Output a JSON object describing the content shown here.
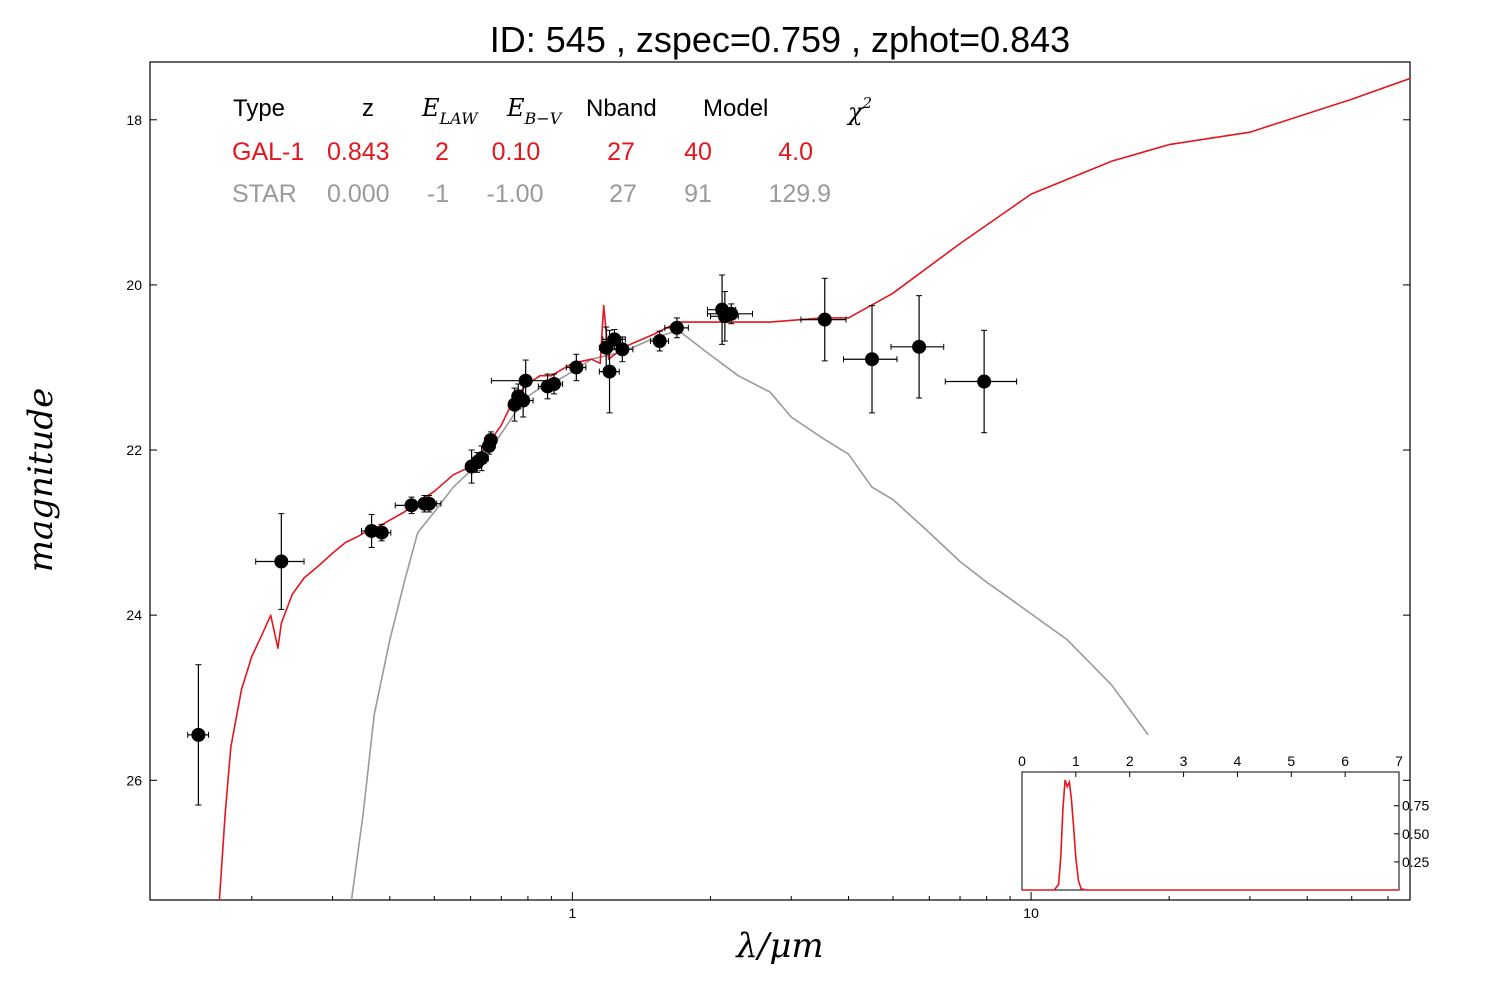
{
  "colors": {
    "galaxy": "#e3161e",
    "star": "#9a9a9a",
    "points": "#000000",
    "axes": "#000000"
  },
  "chart_data": {
    "type": "scatter",
    "title": "ID:  545   , zspec=0.759 , zphot=0.843",
    "xlabel": "λ/μm",
    "ylabel": "magnitude",
    "x_scale": "log",
    "xlim": [
      0.12,
      67
    ],
    "ylim": [
      27.45,
      17.3
    ],
    "y_inverted": true,
    "x_ticks": [
      {
        "value": 1,
        "label": "1"
      },
      {
        "value": 10,
        "label": "10"
      }
    ],
    "y_ticks": [
      {
        "value": 18,
        "label": "18"
      },
      {
        "value": 20,
        "label": "20"
      },
      {
        "value": 22,
        "label": "22"
      },
      {
        "value": 24,
        "label": "24"
      },
      {
        "value": 26,
        "label": "26"
      }
    ],
    "legend_table": {
      "position": "top-left",
      "header": [
        "Type",
        "z",
        "E_LAW",
        "E_B−V",
        "Nband",
        "Model",
        "χ²"
      ],
      "header_display": {
        "E_LAW": {
          "base": "E",
          "sub": "LAW"
        },
        "E_B−V": {
          "base": "E",
          "sub": "B−V"
        },
        "χ²": {
          "base": "χ",
          "sup": "2"
        }
      },
      "rows": [
        {
          "name": "galaxy",
          "cells": [
            "GAL-1",
            "0.843",
            "2",
            "0.10",
            "27",
            "40",
            "4.0"
          ]
        },
        {
          "name": "star",
          "cells": [
            "STAR",
            "0.000",
            "-1",
            "-1.00",
            "27",
            "91",
            "129.9"
          ]
        }
      ]
    },
    "points": [
      {
        "x": 0.153,
        "y": 25.45,
        "xerr": 0.008,
        "yerr": 0.85
      },
      {
        "x": 0.232,
        "y": 23.35,
        "xerr": 0.028,
        "yerr": 0.58
      },
      {
        "x": 0.365,
        "y": 22.98,
        "xerr": 0.018,
        "yerr": 0.2
      },
      {
        "x": 0.384,
        "y": 23.0,
        "xerr": 0.018,
        "yerr": 0.1
      },
      {
        "x": 0.446,
        "y": 22.67,
        "xerr": 0.035,
        "yerr": 0.1
      },
      {
        "x": 0.476,
        "y": 22.65,
        "xerr": 0.03,
        "yerr": 0.1
      },
      {
        "x": 0.487,
        "y": 22.65,
        "xerr": 0.03,
        "yerr": 0.1
      },
      {
        "x": 0.603,
        "y": 22.2,
        "xerr": 0.018,
        "yerr": 0.2
      },
      {
        "x": 0.62,
        "y": 22.15,
        "xerr": 0.018,
        "yerr": 0.12
      },
      {
        "x": 0.634,
        "y": 22.1,
        "xerr": 0.022,
        "yerr": 0.15
      },
      {
        "x": 0.658,
        "y": 21.95,
        "xerr": 0.02,
        "yerr": 0.1
      },
      {
        "x": 0.664,
        "y": 21.88,
        "xerr": 0.02,
        "yerr": 0.1
      },
      {
        "x": 0.748,
        "y": 21.45,
        "xerr": 0.018,
        "yerr": 0.2
      },
      {
        "x": 0.762,
        "y": 21.35,
        "xerr": 0.02,
        "yerr": 0.15
      },
      {
        "x": 0.781,
        "y": 21.4,
        "xerr": 0.04,
        "yerr": 0.2
      },
      {
        "x": 0.791,
        "y": 21.16,
        "xerr": 0.125,
        "yerr": 0.25
      },
      {
        "x": 0.883,
        "y": 21.23,
        "xerr": 0.04,
        "yerr": 0.15
      },
      {
        "x": 0.912,
        "y": 21.2,
        "xerr": 0.04,
        "yerr": 0.12
      },
      {
        "x": 1.02,
        "y": 21.0,
        "xerr": 0.05,
        "yerr": 0.16
      },
      {
        "x": 1.185,
        "y": 20.76,
        "xerr": 0.04,
        "yerr": 0.25
      },
      {
        "x": 1.205,
        "y": 21.05,
        "xerr": 0.06,
        "yerr": 0.5
      },
      {
        "x": 1.235,
        "y": 20.66,
        "xerr": 0.07,
        "yerr": 0.12
      },
      {
        "x": 1.285,
        "y": 20.78,
        "xerr": 0.07,
        "yerr": 0.15
      },
      {
        "x": 1.55,
        "y": 20.68,
        "xerr": 0.07,
        "yerr": 0.12
      },
      {
        "x": 1.69,
        "y": 20.52,
        "xerr": 0.1,
        "yerr": 0.12
      },
      {
        "x": 2.12,
        "y": 20.3,
        "xerr": 0.15,
        "yerr": 0.42
      },
      {
        "x": 2.15,
        "y": 20.38,
        "xerr": 0.15,
        "yerr": 0.3
      },
      {
        "x": 2.22,
        "y": 20.35,
        "xerr": 0.25,
        "yerr": 0.12
      },
      {
        "x": 3.55,
        "y": 20.42,
        "xerr": 0.4,
        "yerr": 0.5
      },
      {
        "x": 4.5,
        "y": 20.9,
        "xerr": 0.6,
        "yerr": 0.65
      },
      {
        "x": 5.7,
        "y": 20.75,
        "xerr": 0.75,
        "yerr": 0.62
      },
      {
        "x": 7.9,
        "y": 21.17,
        "xerr": 1.4,
        "yerr": 0.62
      }
    ],
    "series": [
      {
        "name": "GAL-1",
        "x": [
          0.17,
          0.175,
          0.18,
          0.19,
          0.2,
          0.21,
          0.22,
          0.228,
          0.232,
          0.245,
          0.26,
          0.28,
          0.3,
          0.32,
          0.34,
          0.36,
          0.38,
          0.4,
          0.43,
          0.47,
          0.5,
          0.55,
          0.6,
          0.65,
          0.7,
          0.75,
          0.8,
          0.85,
          0.9,
          1.0,
          1.1,
          1.15,
          1.17,
          1.2,
          1.3,
          1.5,
          1.7,
          2.0,
          2.3,
          2.7,
          3.5,
          4.0,
          5.0,
          7.0,
          10.0,
          15.0,
          20.0,
          30.0,
          50.0,
          67.0
        ],
        "y": [
          27.45,
          26.4,
          25.6,
          24.9,
          24.5,
          24.25,
          24.0,
          24.4,
          24.1,
          23.75,
          23.55,
          23.4,
          23.25,
          23.12,
          23.05,
          22.97,
          22.92,
          22.85,
          22.75,
          22.6,
          22.5,
          22.3,
          22.2,
          21.95,
          21.7,
          21.35,
          21.2,
          21.1,
          21.1,
          20.95,
          20.9,
          20.95,
          20.25,
          20.9,
          20.75,
          20.6,
          20.45,
          20.45,
          20.45,
          20.45,
          20.4,
          20.4,
          20.1,
          19.5,
          18.9,
          18.5,
          18.3,
          18.15,
          17.75,
          17.5
        ]
      },
      {
        "name": "STAR",
        "x": [
          0.33,
          0.35,
          0.37,
          0.4,
          0.43,
          0.46,
          0.5,
          0.55,
          0.6,
          0.65,
          0.7,
          0.75,
          0.8,
          0.85,
          0.9,
          1.0,
          1.1,
          1.2,
          1.3,
          1.5,
          1.7,
          2.0,
          2.3,
          2.7,
          3.0,
          3.5,
          4.0,
          4.5,
          5.0,
          6.0,
          7.0,
          8.0,
          9.0,
          12.0,
          15.0,
          18.0
        ],
        "y": [
          27.45,
          26.4,
          25.2,
          24.3,
          23.6,
          23.0,
          22.75,
          22.45,
          22.25,
          22.05,
          21.8,
          21.55,
          21.35,
          21.25,
          21.2,
          21.05,
          20.9,
          20.85,
          20.8,
          20.65,
          20.55,
          20.85,
          21.1,
          21.3,
          21.6,
          21.85,
          22.05,
          22.45,
          22.6,
          23.0,
          23.35,
          23.6,
          23.8,
          24.3,
          24.85,
          25.45
        ]
      }
    ],
    "inset": {
      "type": "line",
      "position": "bottom-right",
      "xlim": [
        0,
        7
      ],
      "ylim": [
        0,
        1.05
      ],
      "x_ticks": [
        {
          "value": 0,
          "label": "0"
        },
        {
          "value": 1,
          "label": "1"
        },
        {
          "value": 2,
          "label": "2"
        },
        {
          "value": 3,
          "label": "3"
        },
        {
          "value": 4,
          "label": "4"
        },
        {
          "value": 5,
          "label": "5"
        },
        {
          "value": 6,
          "label": "6"
        },
        {
          "value": 7,
          "label": "7"
        }
      ],
      "y_ticks": [
        {
          "value": 0.25,
          "label": "0.25"
        },
        {
          "value": 0.5,
          "label": "0.50"
        },
        {
          "value": 0.75,
          "label": "0.75"
        }
      ],
      "x": [
        0,
        0.6,
        0.68,
        0.72,
        0.76,
        0.8,
        0.84,
        0.88,
        0.92,
        0.96,
        1.0,
        1.05,
        1.1,
        1.2,
        7.0
      ],
      "y": [
        0,
        0,
        0.05,
        0.3,
        0.72,
        0.98,
        0.92,
        0.96,
        0.8,
        0.55,
        0.28,
        0.08,
        0.01,
        0,
        0
      ]
    }
  }
}
